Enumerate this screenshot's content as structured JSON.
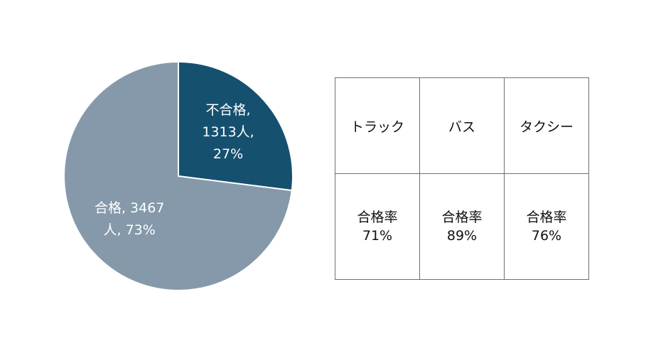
{
  "chart_data": [
    {
      "type": "pie",
      "title": "",
      "slices": [
        {
          "name": "不合格",
          "count_label": "1313人",
          "percent": 27,
          "color": "#15506f",
          "label_lines": [
            "不合格,",
            "1313人,",
            "27%"
          ]
        },
        {
          "name": "合格",
          "count_label": "3467人",
          "percent": 73,
          "color": "#8599aa",
          "label_lines": [
            "合格, 3467",
            "人, 73%"
          ]
        }
      ],
      "start_angle_deg": 0,
      "direction": "clockwise",
      "legend": "none"
    },
    {
      "type": "table",
      "columns": [
        "トラック",
        "バス",
        "タクシー"
      ],
      "rows": [
        {
          "label": "合格率",
          "values": [
            "71%",
            "89%",
            "76%"
          ]
        }
      ]
    }
  ],
  "table": {
    "headers": [
      "トラック",
      "バス",
      "タクシー"
    ],
    "rate_label": "合格率",
    "rates": [
      "71%",
      "89%",
      "76%"
    ]
  }
}
